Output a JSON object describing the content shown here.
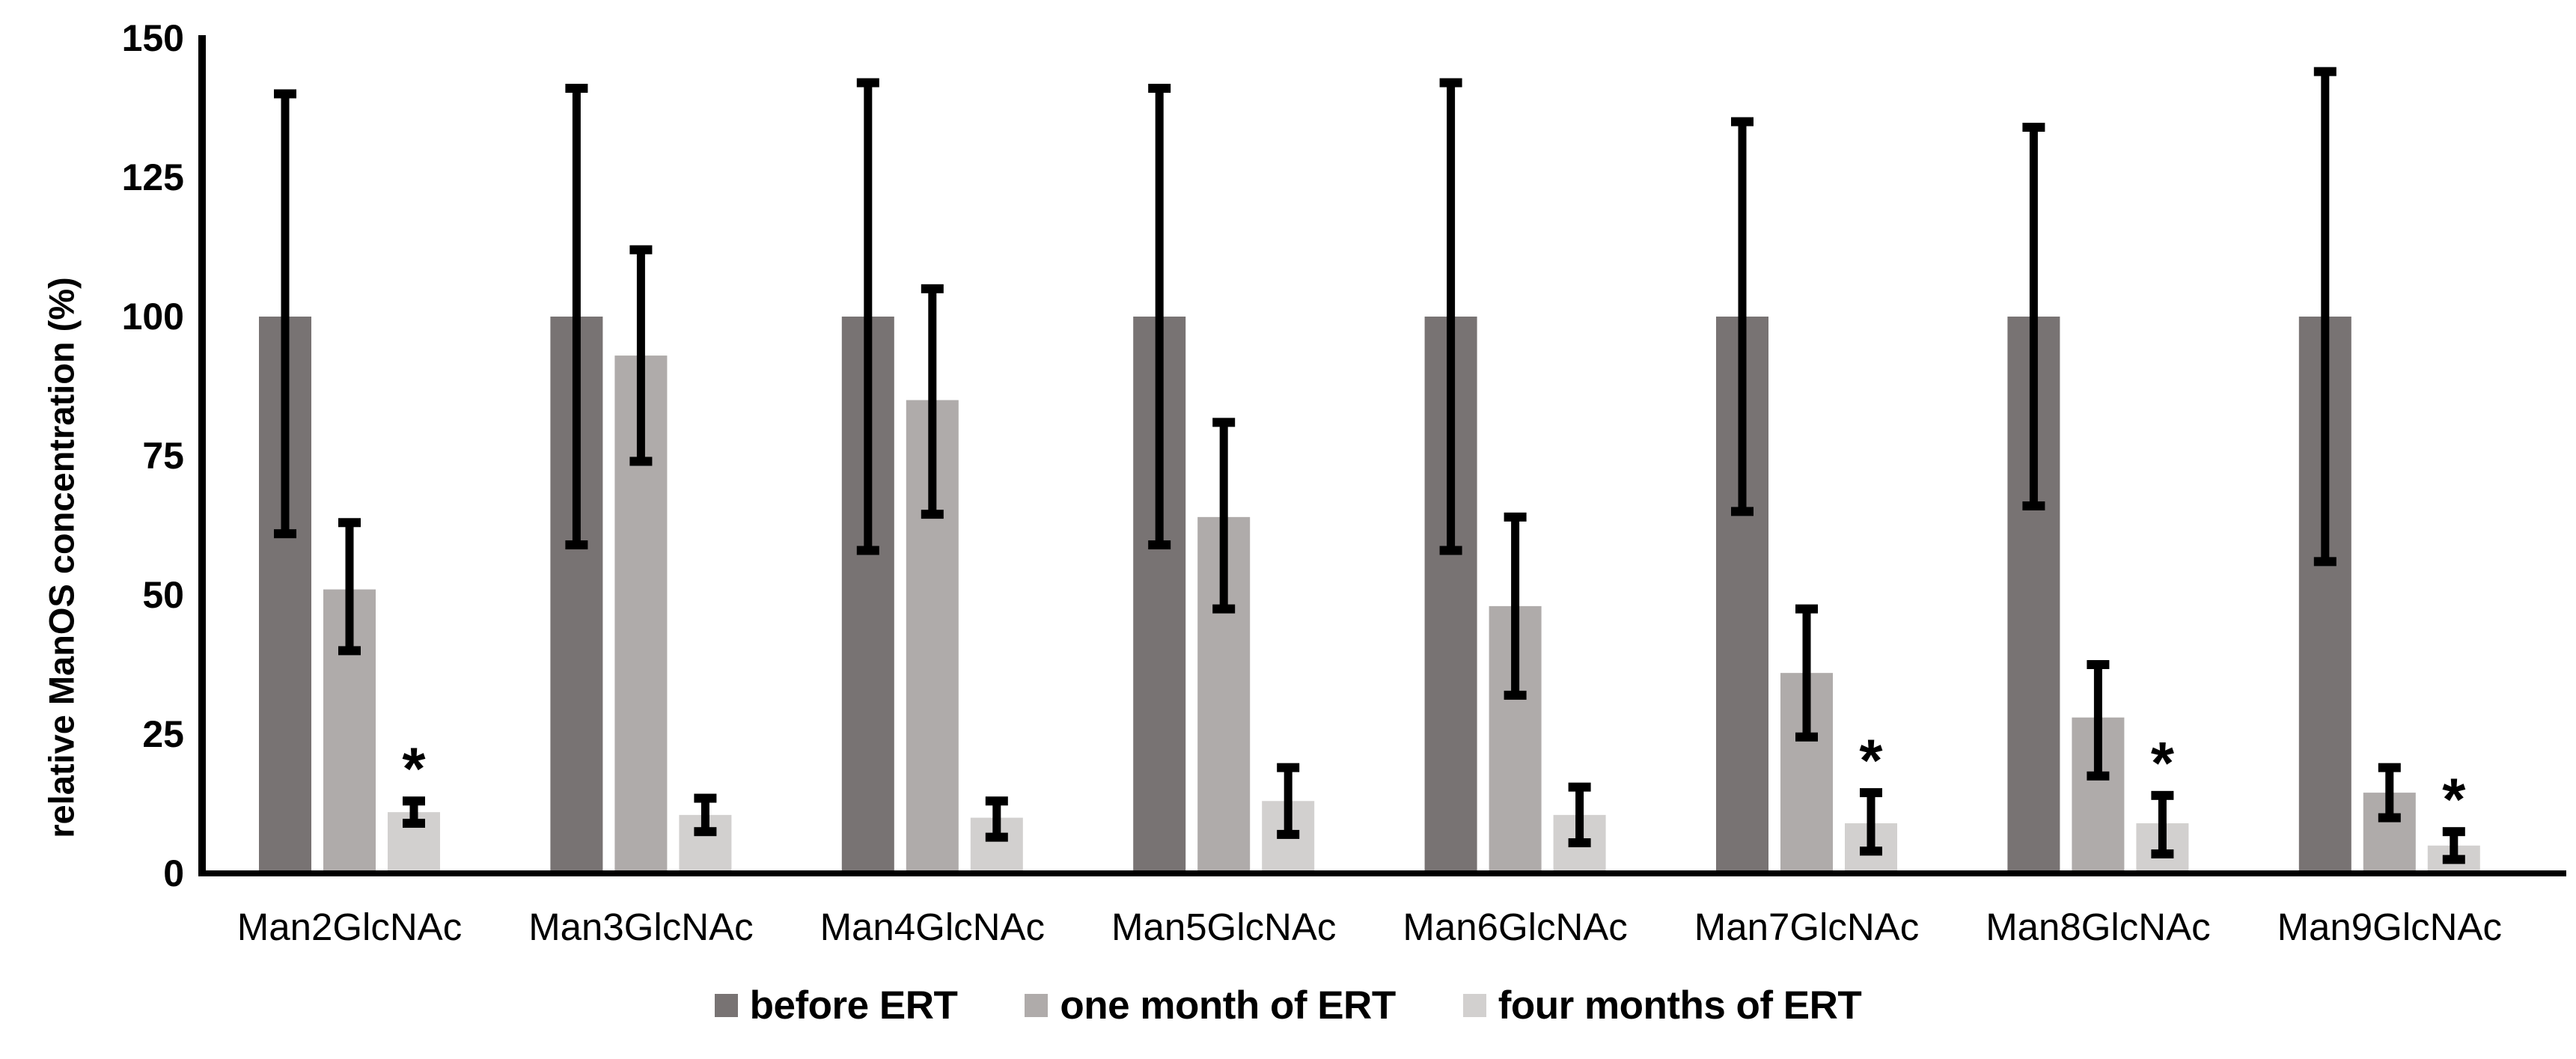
{
  "chart_data": {
    "type": "bar",
    "title": "",
    "xlabel": "",
    "ylabel": "relative ManOS concentration (%)",
    "ylim": [
      0,
      150
    ],
    "yticks": [
      0,
      25,
      50,
      75,
      100,
      125,
      150
    ],
    "grid": false,
    "legend_position": "bottom",
    "background_color": "#ffffff",
    "axis_color": "#000000",
    "error_bar_color": "#000000",
    "significance_marker": "*",
    "categories": [
      "Man2GlcNAc",
      "Man3GlcNAc",
      "Man4GlcNAc",
      "Man5GlcNAc",
      "Man6GlcNAc",
      "Man7GlcNAc",
      "Man8GlcNAc",
      "Man9GlcNAc"
    ],
    "series": [
      {
        "name": "before ERT",
        "color": "#787373",
        "values": [
          100,
          100,
          100,
          100,
          100,
          100,
          100,
          100
        ],
        "error_low": [
          61,
          59,
          58,
          59,
          58,
          65,
          66,
          56
        ],
        "error_high": [
          140,
          141,
          142,
          141,
          142,
          135,
          134,
          144
        ],
        "significant": [
          false,
          false,
          false,
          false,
          false,
          false,
          false,
          false
        ]
      },
      {
        "name": "one month of ERT",
        "color": "#afabaa",
        "values": [
          51,
          93,
          85,
          64,
          48,
          36,
          28,
          14.5
        ],
        "error_low": [
          40,
          74,
          64.5,
          47.5,
          32,
          24.5,
          17.5,
          10
        ],
        "error_high": [
          63,
          112,
          105,
          81,
          64,
          47.5,
          37.5,
          19
        ],
        "significant": [
          false,
          false,
          false,
          false,
          false,
          false,
          false,
          false
        ]
      },
      {
        "name": "four months of ERT",
        "color": "#d2d0cf",
        "values": [
          11,
          10.5,
          10,
          13,
          10.5,
          9,
          9,
          5
        ],
        "error_low": [
          9,
          7.5,
          6.5,
          7,
          5.5,
          4,
          3.5,
          2.5
        ],
        "error_high": [
          13,
          13.5,
          13,
          19,
          15.5,
          14.5,
          14,
          7.5
        ],
        "significant": [
          true,
          false,
          false,
          false,
          false,
          true,
          true,
          true
        ]
      }
    ]
  }
}
